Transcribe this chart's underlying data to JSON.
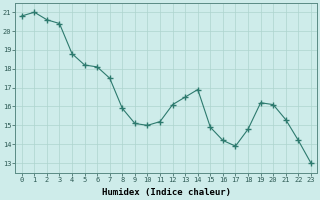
{
  "x": [
    0,
    1,
    2,
    3,
    4,
    5,
    6,
    7,
    8,
    9,
    10,
    11,
    12,
    13,
    14,
    15,
    16,
    17,
    18,
    19,
    20,
    21,
    22,
    23
  ],
  "y": [
    20.8,
    21.0,
    20.6,
    20.4,
    18.8,
    18.2,
    18.1,
    17.5,
    15.9,
    15.1,
    15.0,
    15.2,
    16.1,
    16.5,
    16.9,
    14.9,
    14.2,
    13.9,
    14.8,
    16.2,
    16.1,
    15.3,
    14.2,
    13.0
  ],
  "line_color": "#2d7a6e",
  "marker": "+",
  "marker_size": 4,
  "bg_color": "#ceecea",
  "grid_color": "#aed4ce",
  "xlabel": "Humidex (Indice chaleur)",
  "ylabel_ticks": [
    13,
    14,
    15,
    16,
    17,
    18,
    19,
    20,
    21
  ],
  "ylim": [
    12.5,
    21.5
  ],
  "xlim": [
    -0.5,
    23.5
  ],
  "xlabel_fontsize": 6.5,
  "tick_fontsize": 5.0
}
